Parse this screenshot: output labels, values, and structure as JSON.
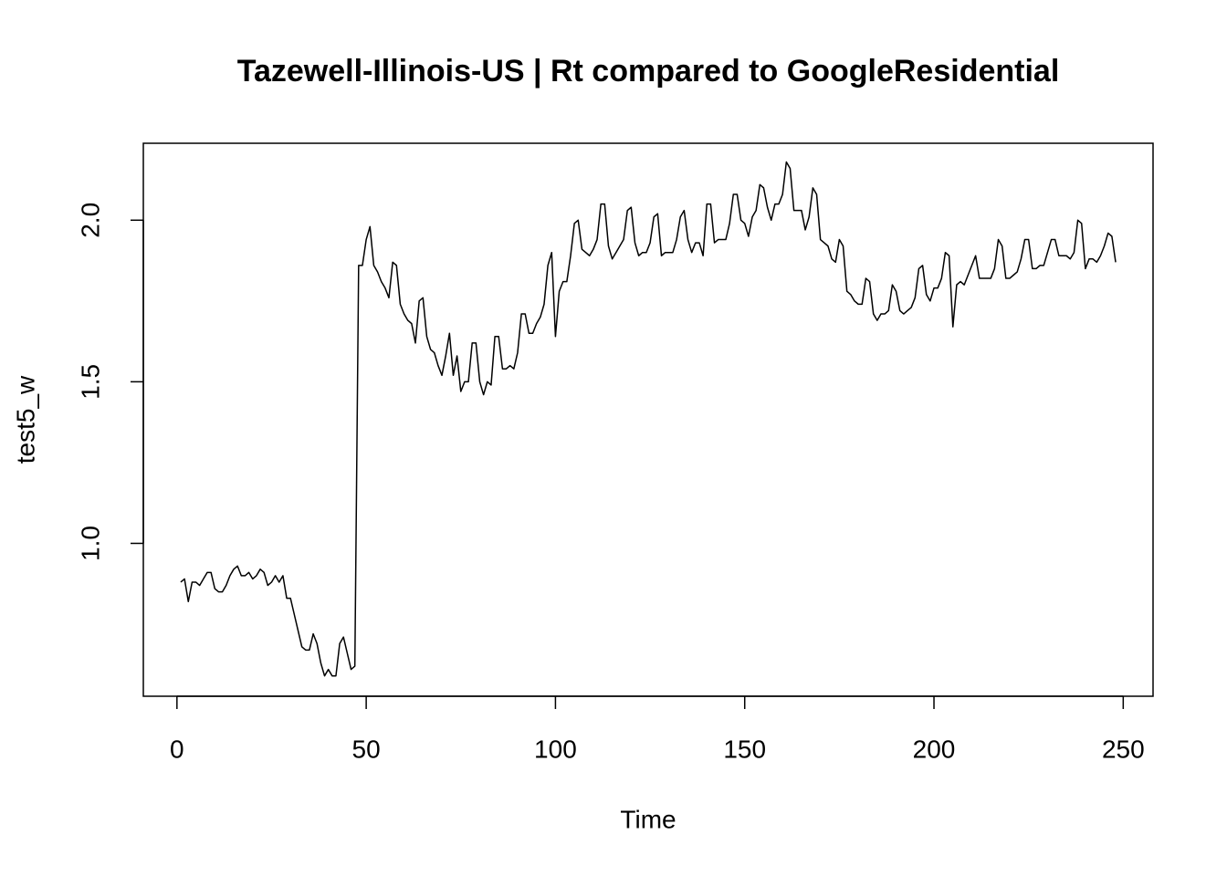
{
  "chart_data": {
    "type": "line",
    "title": "Tazewell-Illinois-US | Rt compared to GoogleResidential",
    "x_label": "Time",
    "y_label": "test5_w",
    "color": "#000000",
    "x": [
      1,
      2,
      3,
      4,
      5,
      6,
      7,
      8,
      9,
      10,
      11,
      12,
      13,
      14,
      15,
      16,
      17,
      18,
      19,
      20,
      21,
      22,
      23,
      24,
      25,
      26,
      27,
      28,
      29,
      30,
      31,
      32,
      33,
      34,
      35,
      36,
      37,
      38,
      39,
      40,
      41,
      42,
      43,
      44,
      45,
      46,
      47,
      48,
      49,
      50,
      51,
      52,
      53,
      54,
      55,
      56,
      57,
      58,
      59,
      60,
      61,
      62,
      63,
      64,
      65,
      66,
      67,
      68,
      69,
      70,
      71,
      72,
      73,
      74,
      75,
      76,
      77,
      78,
      79,
      80,
      81,
      82,
      83,
      84,
      85,
      86,
      87,
      88,
      89,
      90,
      91,
      92,
      93,
      94,
      95,
      96,
      97,
      98,
      99,
      100,
      101,
      102,
      103,
      104,
      105,
      106,
      107,
      108,
      109,
      110,
      111,
      112,
      113,
      114,
      115,
      116,
      117,
      118,
      119,
      120,
      121,
      122,
      123,
      124,
      125,
      126,
      127,
      128,
      129,
      130,
      131,
      132,
      133,
      134,
      135,
      136,
      137,
      138,
      139,
      140,
      141,
      142,
      143,
      144,
      145,
      146,
      147,
      148,
      149,
      150,
      151,
      152,
      153,
      154,
      155,
      156,
      157,
      158,
      159,
      160,
      161,
      162,
      163,
      164,
      165,
      166,
      167,
      168,
      169,
      170,
      171,
      172,
      173,
      174,
      175,
      176,
      177,
      178,
      179,
      180,
      181,
      182,
      183,
      184,
      185,
      186,
      187,
      188,
      189,
      190,
      191,
      192,
      193,
      194,
      195,
      196,
      197,
      198,
      199,
      200,
      201,
      202,
      203,
      204,
      205,
      206,
      207,
      208,
      209,
      210,
      211,
      212,
      213,
      214,
      215,
      216,
      217,
      218,
      219,
      220,
      221,
      222,
      223,
      224,
      225,
      226,
      227,
      228,
      229,
      230,
      231,
      232,
      233,
      234,
      235,
      236,
      237,
      238,
      239,
      240,
      241,
      242,
      243,
      244,
      245,
      246,
      247,
      248
    ],
    "values": [
      0.88,
      0.89,
      0.82,
      0.88,
      0.88,
      0.87,
      0.89,
      0.91,
      0.91,
      0.86,
      0.85,
      0.85,
      0.87,
      0.9,
      0.92,
      0.93,
      0.9,
      0.9,
      0.91,
      0.89,
      0.9,
      0.92,
      0.91,
      0.87,
      0.88,
      0.9,
      0.88,
      0.9,
      0.83,
      0.83,
      0.78,
      0.73,
      0.68,
      0.67,
      0.67,
      0.72,
      0.69,
      0.63,
      0.59,
      0.61,
      0.59,
      0.59,
      0.69,
      0.71,
      0.66,
      0.61,
      0.62,
      1.86,
      1.86,
      1.94,
      1.98,
      1.86,
      1.84,
      1.81,
      1.79,
      1.76,
      1.87,
      1.86,
      1.74,
      1.71,
      1.69,
      1.68,
      1.62,
      1.75,
      1.76,
      1.64,
      1.6,
      1.59,
      1.55,
      1.52,
      1.58,
      1.65,
      1.52,
      1.58,
      1.47,
      1.5,
      1.5,
      1.62,
      1.62,
      1.5,
      1.46,
      1.5,
      1.49,
      1.64,
      1.64,
      1.54,
      1.54,
      1.55,
      1.54,
      1.59,
      1.71,
      1.71,
      1.65,
      1.65,
      1.68,
      1.7,
      1.74,
      1.86,
      1.9,
      1.64,
      1.78,
      1.81,
      1.81,
      1.89,
      1.99,
      2.0,
      1.91,
      1.9,
      1.89,
      1.91,
      1.94,
      2.05,
      2.05,
      1.92,
      1.88,
      1.9,
      1.92,
      1.94,
      2.03,
      2.04,
      1.93,
      1.89,
      1.9,
      1.9,
      1.93,
      2.01,
      2.02,
      1.89,
      1.9,
      1.9,
      1.9,
      1.94,
      2.01,
      2.03,
      1.94,
      1.9,
      1.93,
      1.93,
      1.89,
      2.05,
      2.05,
      1.93,
      1.94,
      1.94,
      1.94,
      1.99,
      2.08,
      2.08,
      2.0,
      1.99,
      1.95,
      2.01,
      2.03,
      2.11,
      2.1,
      2.04,
      2.0,
      2.05,
      2.05,
      2.08,
      2.18,
      2.16,
      2.03,
      2.03,
      2.03,
      1.97,
      2.01,
      2.1,
      2.08,
      1.94,
      1.93,
      1.92,
      1.88,
      1.87,
      1.94,
      1.92,
      1.78,
      1.77,
      1.75,
      1.74,
      1.74,
      1.82,
      1.81,
      1.71,
      1.69,
      1.71,
      1.71,
      1.72,
      1.8,
      1.78,
      1.72,
      1.71,
      1.72,
      1.73,
      1.76,
      1.85,
      1.86,
      1.77,
      1.75,
      1.79,
      1.79,
      1.82,
      1.9,
      1.89,
      1.67,
      1.8,
      1.81,
      1.8,
      1.83,
      1.86,
      1.89,
      1.82,
      1.82,
      1.82,
      1.82,
      1.85,
      1.94,
      1.92,
      1.82,
      1.82,
      1.83,
      1.84,
      1.88,
      1.94,
      1.94,
      1.85,
      1.85,
      1.86,
      1.86,
      1.9,
      1.94,
      1.94,
      1.89,
      1.89,
      1.89,
      1.88,
      1.9,
      2.0,
      1.99,
      1.85,
      1.88,
      1.88,
      1.87,
      1.89,
      1.92,
      1.96,
      1.95,
      1.87
    ],
    "xlim": [
      -8.88,
      257.88
    ],
    "xticks": [
      0,
      50,
      100,
      150,
      200,
      250
    ],
    "ylim": [
      0.527,
      2.238
    ],
    "yticks": [
      {
        "value": 1,
        "label": "1.0"
      },
      {
        "value": 1.5,
        "label": "1.5"
      },
      {
        "value": 2,
        "label": "2.0"
      }
    ]
  }
}
